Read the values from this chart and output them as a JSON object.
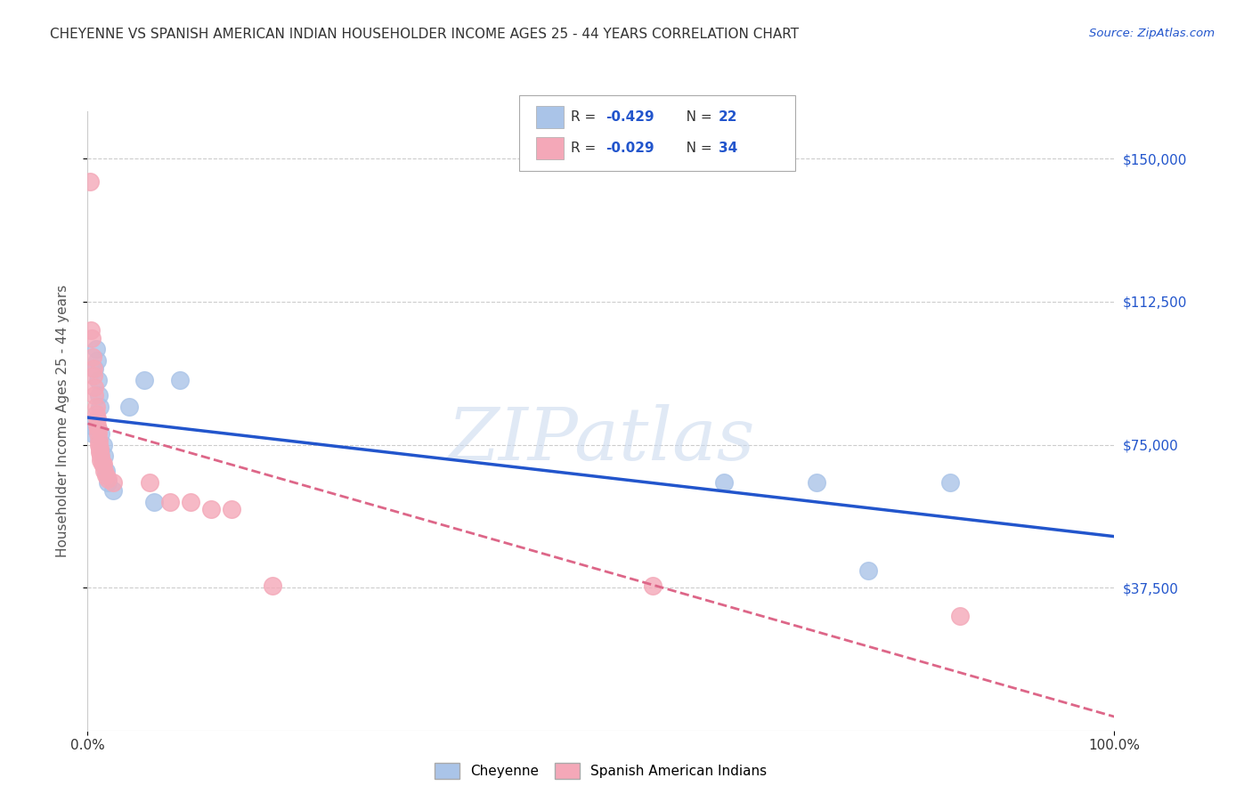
{
  "title": "CHEYENNE VS SPANISH AMERICAN INDIAN HOUSEHOLDER INCOME AGES 25 - 44 YEARS CORRELATION CHART",
  "source": "Source: ZipAtlas.com",
  "ylabel": "Householder Income Ages 25 - 44 years",
  "xlim": [
    0,
    1.0
  ],
  "ylim": [
    0,
    162500
  ],
  "yticks": [
    37500,
    75000,
    112500,
    150000
  ],
  "ytick_labels": [
    "$37,500",
    "$75,000",
    "$112,500",
    "$150,000"
  ],
  "xtick_positions": [
    0.0,
    1.0
  ],
  "xtick_labels": [
    "0.0%",
    "100.0%"
  ],
  "background_color": "#ffffff",
  "grid_color": "#cccccc",
  "cheyenne_color": "#aac4e8",
  "spanish_color": "#f4a8b8",
  "cheyenne_line_color": "#2255cc",
  "spanish_line_color": "#dd6688",
  "cheyenne_x": [
    0.003,
    0.005,
    0.007,
    0.008,
    0.009,
    0.01,
    0.011,
    0.012,
    0.013,
    0.015,
    0.016,
    0.018,
    0.02,
    0.025,
    0.04,
    0.055,
    0.065,
    0.09,
    0.62,
    0.71,
    0.76,
    0.84
  ],
  "cheyenne_y": [
    80000,
    78000,
    95000,
    100000,
    97000,
    92000,
    88000,
    85000,
    78000,
    75000,
    72000,
    68000,
    65000,
    63000,
    85000,
    92000,
    60000,
    92000,
    65000,
    65000,
    42000,
    65000
  ],
  "spanish_x": [
    0.002,
    0.003,
    0.004,
    0.005,
    0.006,
    0.006,
    0.007,
    0.007,
    0.008,
    0.008,
    0.009,
    0.009,
    0.01,
    0.01,
    0.011,
    0.011,
    0.012,
    0.012,
    0.013,
    0.013,
    0.014,
    0.015,
    0.016,
    0.018,
    0.02,
    0.025,
    0.06,
    0.08,
    0.1,
    0.12,
    0.14,
    0.18,
    0.55,
    0.85
  ],
  "spanish_y": [
    144000,
    105000,
    103000,
    98000,
    95000,
    93000,
    90000,
    88000,
    85000,
    83000,
    82000,
    80000,
    79000,
    78000,
    76000,
    75000,
    74000,
    73000,
    72000,
    71000,
    70000,
    70000,
    68000,
    67000,
    66000,
    65000,
    65000,
    60000,
    60000,
    58000,
    58000,
    38000,
    38000,
    30000
  ],
  "legend_R_cheyenne": "-0.429",
  "legend_N_cheyenne": "22",
  "legend_R_spanish": "-0.029",
  "legend_N_spanish": "34"
}
